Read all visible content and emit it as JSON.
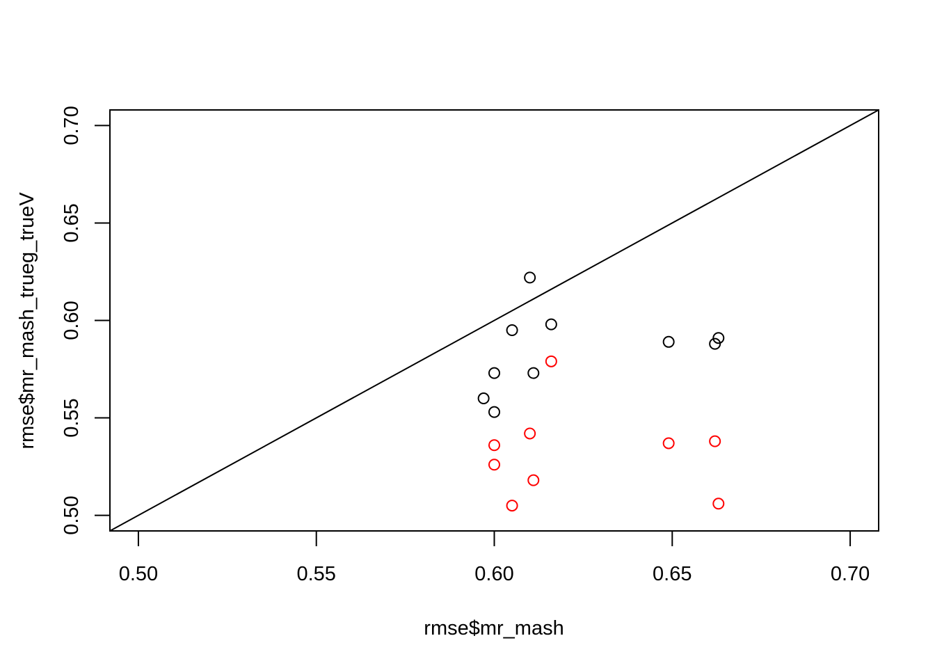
{
  "chart_data": {
    "type": "scatter",
    "xlabel": "rmse$mr_mash",
    "ylabel": "rmse$mr_mash_trueg_trueV",
    "xlim": [
      0.492,
      0.708
    ],
    "ylim": [
      0.492,
      0.708
    ],
    "x_ticks": [
      "0.50",
      "0.55",
      "0.60",
      "0.65",
      "0.70"
    ],
    "y_ticks": [
      "0.50",
      "0.55",
      "0.60",
      "0.65",
      "0.70"
    ],
    "reference_line": {
      "type": "abline",
      "intercept": 0,
      "slope": 1
    },
    "series": [
      {
        "color": "#000000",
        "marker": "open-circle",
        "points": [
          {
            "x": 0.61,
            "y": 0.622
          },
          {
            "x": 0.616,
            "y": 0.598
          },
          {
            "x": 0.605,
            "y": 0.595
          },
          {
            "x": 0.6,
            "y": 0.573
          },
          {
            "x": 0.611,
            "y": 0.573
          },
          {
            "x": 0.597,
            "y": 0.56
          },
          {
            "x": 0.6,
            "y": 0.553
          },
          {
            "x": 0.649,
            "y": 0.589
          },
          {
            "x": 0.663,
            "y": 0.591
          },
          {
            "x": 0.662,
            "y": 0.588
          }
        ]
      },
      {
        "color": "#ff0000",
        "marker": "open-circle",
        "points": [
          {
            "x": 0.616,
            "y": 0.579
          },
          {
            "x": 0.61,
            "y": 0.542
          },
          {
            "x": 0.6,
            "y": 0.536
          },
          {
            "x": 0.6,
            "y": 0.526
          },
          {
            "x": 0.611,
            "y": 0.518
          },
          {
            "x": 0.605,
            "y": 0.505
          },
          {
            "x": 0.649,
            "y": 0.537
          },
          {
            "x": 0.662,
            "y": 0.538
          },
          {
            "x": 0.663,
            "y": 0.506
          }
        ]
      }
    ]
  }
}
